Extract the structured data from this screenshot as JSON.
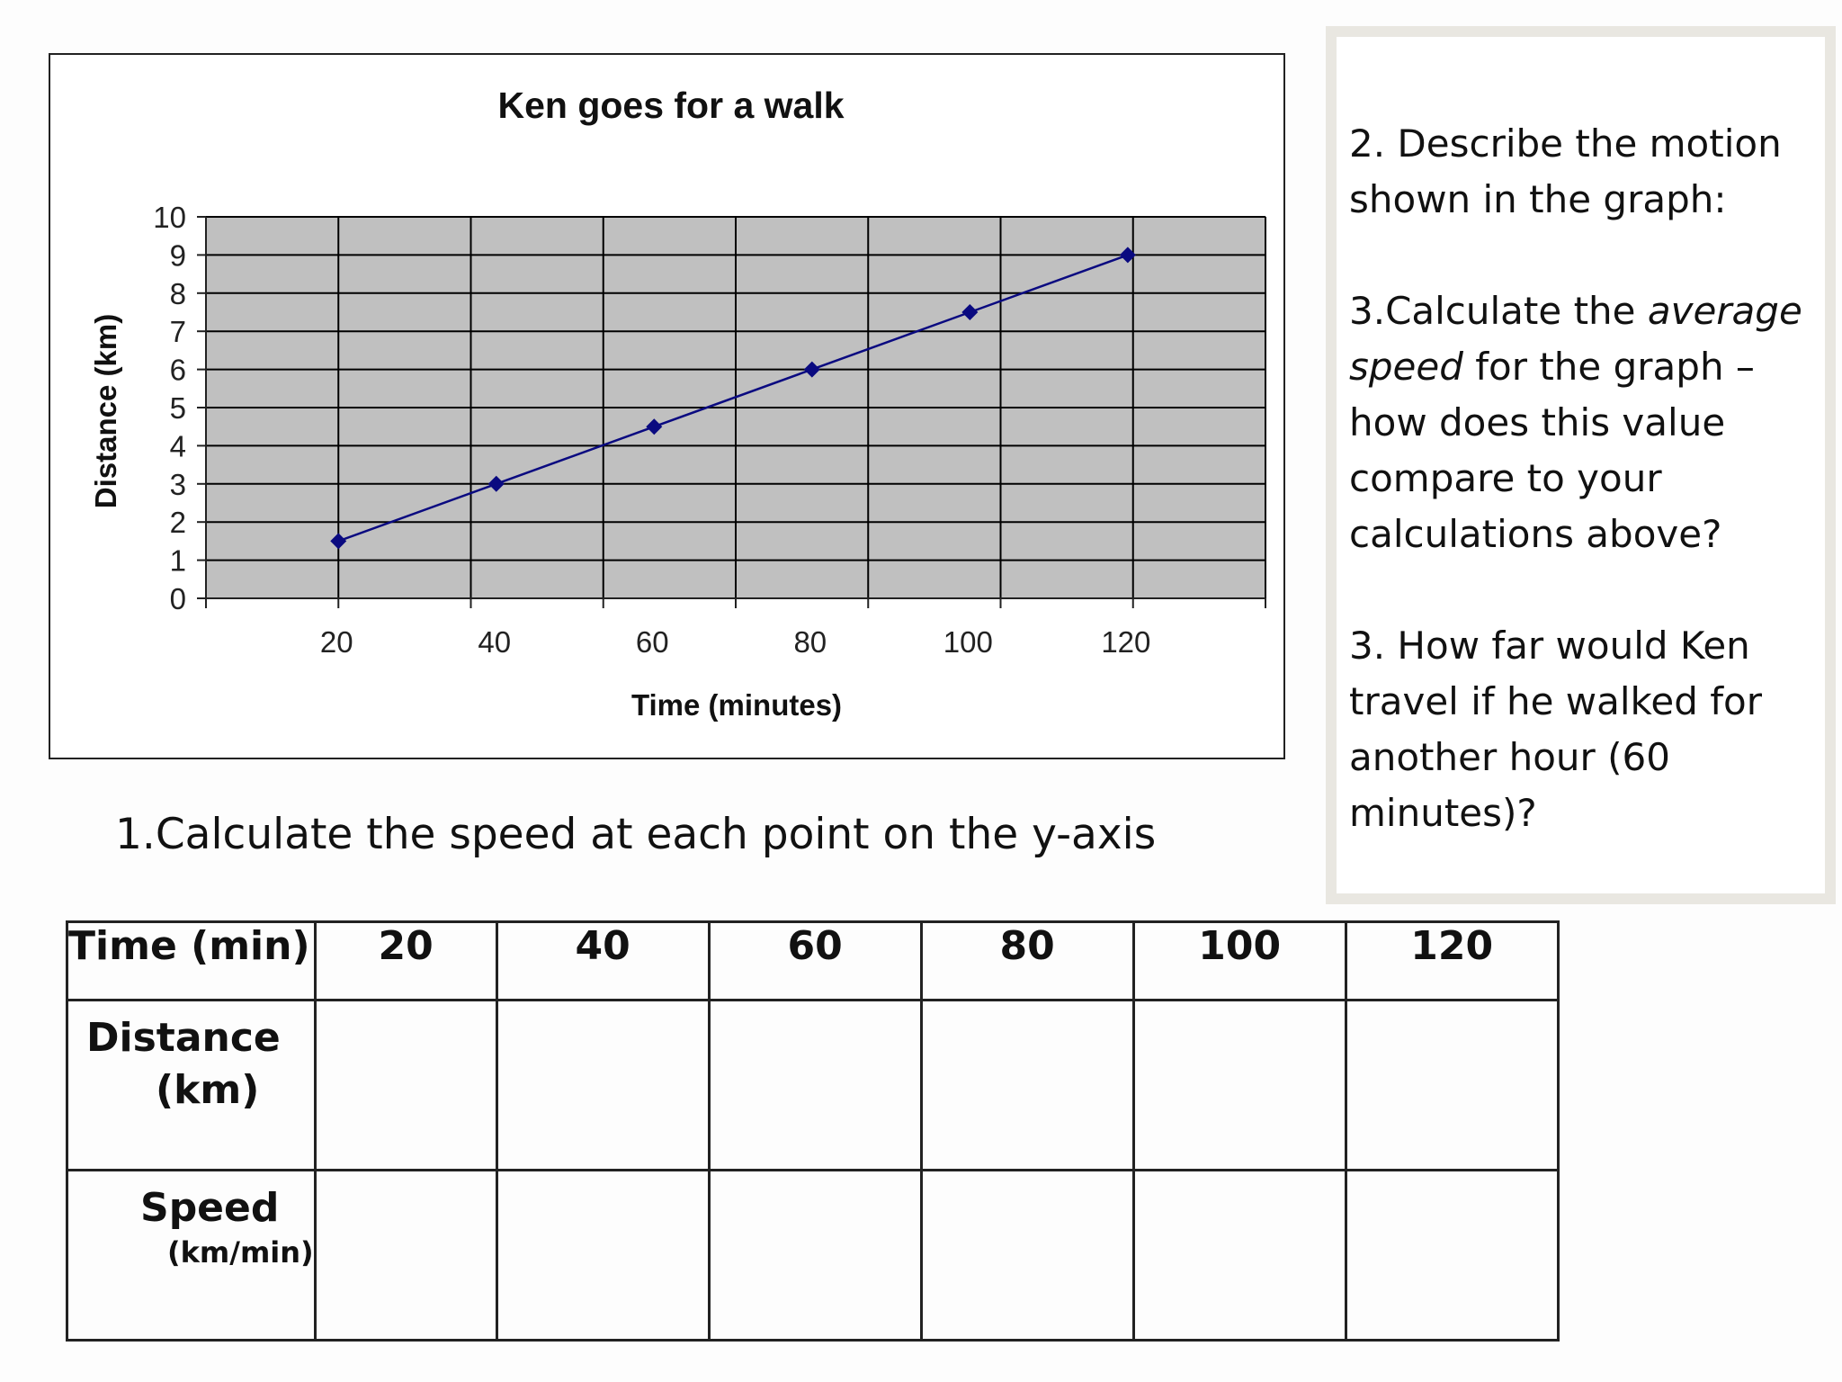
{
  "chart_data": {
    "type": "line",
    "title": "Ken goes for a walk",
    "xlabel": "Time (minutes)",
    "ylabel": "Distance (km)",
    "x": [
      20,
      40,
      60,
      80,
      100,
      120
    ],
    "x_tick_labels": [
      "20",
      "40",
      "60",
      "80",
      "100",
      "120"
    ],
    "y_tick_labels": [
      "0",
      "1",
      "2",
      "3",
      "4",
      "5",
      "6",
      "7",
      "8",
      "9",
      "10"
    ],
    "ylim": [
      0,
      10
    ],
    "series": [
      {
        "values": [
          1.5,
          3,
          4.5,
          6,
          7.5,
          9
        ]
      }
    ],
    "marker": "diamond",
    "grid": true,
    "colors": {
      "line": "#0a0a80",
      "plot_background": "#c0c0c0",
      "grid": "#000000"
    }
  },
  "questions": {
    "q2": "2. Describe the motion shown in the graph:",
    "q3_before": "3.Calculate the ",
    "q3_emph": "average speed",
    "q3_after": " for the graph – how does this value compare to your calculations above?",
    "q3b": "3. How far would Ken travel if he walked for another hour (60 minutes)?"
  },
  "instruction": "1.Calculate the speed at each point on the y-axis",
  "table": {
    "time_label": "Time (min)",
    "times": [
      "20",
      "40",
      "60",
      "80",
      "100",
      "120"
    ],
    "distance_label": "Distance",
    "distance_unit": "(km)",
    "speed_label": "Speed",
    "speed_unit": "(km/min)"
  }
}
